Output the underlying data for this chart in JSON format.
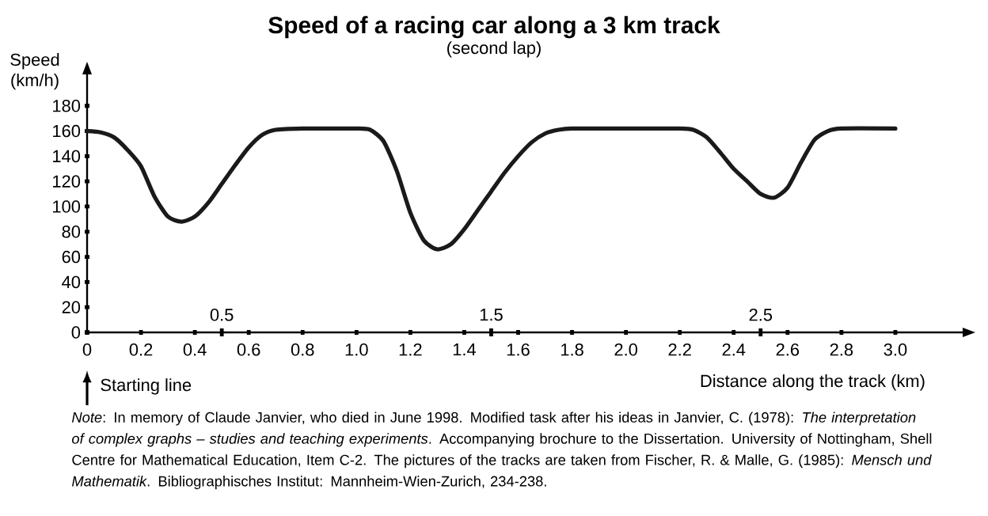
{
  "chart_data": {
    "type": "line",
    "title": "Speed of a racing car along a 3 km track",
    "subtitle": "(second lap)",
    "ylabel": "Speed (km/h)",
    "xlabel": "Distance along the track (km)",
    "x": [
      0,
      0.05,
      0.1,
      0.15,
      0.2,
      0.25,
      0.3,
      0.35,
      0.4,
      0.45,
      0.5,
      0.55,
      0.6,
      0.65,
      0.7,
      0.8,
      0.9,
      1.0,
      1.05,
      1.1,
      1.15,
      1.2,
      1.25,
      1.3,
      1.35,
      1.4,
      1.45,
      1.5,
      1.55,
      1.6,
      1.65,
      1.7,
      1.75,
      1.8,
      2.0,
      2.2,
      2.25,
      2.3,
      2.35,
      2.4,
      2.45,
      2.5,
      2.55,
      2.6,
      2.65,
      2.7,
      2.75,
      2.8,
      3.0
    ],
    "values": [
      160,
      159,
      155,
      145,
      132,
      108,
      92,
      88,
      92,
      103,
      118,
      133,
      147,
      157,
      161,
      162,
      162,
      162,
      161,
      152,
      128,
      95,
      73,
      66,
      70,
      82,
      97,
      112,
      127,
      140,
      151,
      158,
      161,
      162,
      162,
      162,
      161,
      155,
      143,
      130,
      120,
      110,
      107,
      115,
      135,
      153,
      160,
      162,
      162
    ],
    "color": "#1a1a1a",
    "marker": "none",
    "line_style": "solid",
    "grid": false,
    "xlim": [
      0,
      3.25
    ],
    "ylim": [
      0,
      205
    ],
    "xticks": [
      {
        "value": 0,
        "label": "0"
      },
      0.2,
      0.4,
      0.6,
      0.8,
      {
        "value": 1,
        "label": "1.0"
      },
      1.2,
      1.4,
      1.6,
      1.8,
      {
        "value": 2,
        "label": "2.0"
      },
      2.2,
      2.4,
      2.6,
      2.8,
      {
        "value": 3,
        "label": "3.0"
      }
    ],
    "x2lim": [
      0,
      3.25
    ],
    "x2ticks": [
      0.5,
      1.5,
      2.5
    ],
    "yticks": [
      0,
      20,
      40,
      60,
      80,
      100,
      120,
      140,
      160,
      180
    ],
    "annotations": [
      "Starting line",
      "*Note*: In memory of Claude Janvier, who died in June 1998. Modified task after his ideas in Janvier, C. (1978): *The interpretation of complex graphs – studies and teaching experiments*. Accompanying brochure to the Dissertation. University of Nottingham, Shell Centre for Mathematical Education, Item C-2. The pictures of the tracks are taken from Fischer, R. & Malle, G. (1985): *Mensch und Mathematik*. Bibliographisches Institut: Mannheim-Wien-Zurich, 234-238."
    ]
  }
}
